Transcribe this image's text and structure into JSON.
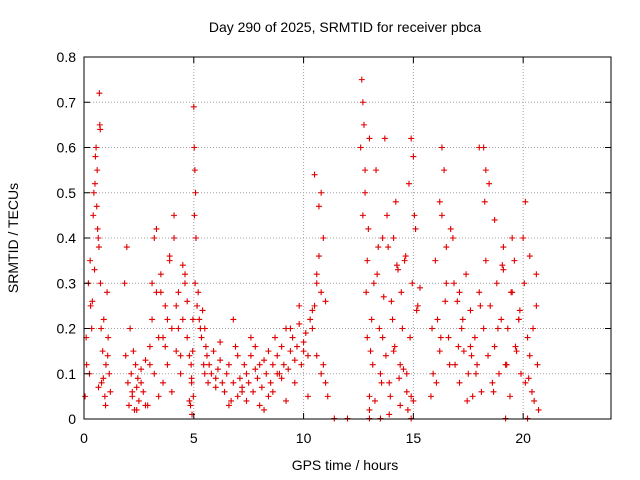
{
  "chart_data": {
    "type": "scatter",
    "title": "Day 290 of 2025, SRMTID for receiver pbca",
    "xlabel": "GPS time / hours",
    "ylabel": "SRMTID / TECUs",
    "xlim": [
      0,
      24
    ],
    "ylim": [
      0,
      0.8
    ],
    "xticks": [
      0,
      5,
      10,
      15,
      20
    ],
    "xtick_labels": [
      "0",
      "5",
      "10",
      "15",
      "20"
    ],
    "yticks": [
      0,
      0.1,
      0.2,
      0.3,
      0.4,
      0.5,
      0.6,
      0.7,
      0.8
    ],
    "ytick_labels": [
      "0",
      "0.1",
      "0.2",
      "0.3",
      "0.4",
      "0.5",
      "0.6",
      "0.7",
      "0.8"
    ],
    "grid": true,
    "marker": "plus",
    "colors": {
      "series": "#e00000",
      "grid": "#a0a0a0",
      "axis": "#000000"
    },
    "series": [
      {
        "name": "SRMTID",
        "x": [
          0.05,
          0.12,
          0.2,
          0.28,
          0.35,
          0.42,
          0.5,
          0.55,
          0.6,
          0.65,
          0.7,
          0.72,
          0.75,
          0.8,
          0.85,
          0.9,
          0.95,
          1.0,
          1.05,
          1.1,
          1.15,
          1.2,
          0.3,
          0.45,
          0.52,
          0.58,
          0.62,
          0.68,
          0.74,
          0.1,
          0.25,
          0.38,
          0.48,
          0.66,
          0.78,
          0.88,
          0.98,
          1.08,
          1.85,
          1.9,
          1.95,
          2.0,
          2.05,
          2.1,
          2.15,
          2.2,
          2.25,
          2.3,
          2.35,
          2.4,
          2.45,
          2.5,
          2.6,
          2.7,
          2.8,
          2.9,
          3.0,
          3.1,
          3.2,
          3.3,
          3.4,
          3.5,
          3.6,
          3.7,
          3.8,
          3.9,
          4.0,
          4.1,
          4.2,
          4.3,
          4.4,
          4.5,
          4.6,
          4.7,
          4.8,
          4.9,
          2.2,
          2.4,
          2.6,
          2.8,
          3.0,
          3.2,
          3.4,
          3.6,
          3.8,
          4.0,
          4.2,
          4.4,
          4.6,
          4.8,
          3.1,
          3.3,
          3.5,
          3.7,
          3.9,
          4.1,
          4.3,
          4.5,
          4.7,
          4.85,
          4.9,
          4.95,
          5.0,
          5.02,
          5.05,
          5.08,
          5.1,
          4.92,
          4.98,
          5.03,
          4.88,
          4.96,
          5.06,
          5.15,
          5.2,
          5.25,
          5.3,
          5.35,
          5.4,
          5.45,
          5.5,
          5.55,
          5.6,
          5.65,
          5.7,
          5.8,
          5.9,
          6.0,
          6.1,
          6.2,
          6.3,
          6.4,
          6.5,
          6.6,
          6.7,
          6.8,
          6.9,
          7.0,
          7.1,
          7.2,
          7.3,
          7.4,
          7.5,
          7.6,
          7.7,
          7.8,
          7.9,
          8.0,
          8.1,
          8.2,
          8.3,
          8.4,
          8.5,
          8.6,
          8.7,
          8.8,
          8.9,
          9.0,
          9.1,
          9.2,
          9.3,
          9.4,
          9.5,
          9.6,
          9.7,
          9.8,
          9.9,
          10.0,
          10.1,
          10.2,
          10.3,
          10.4,
          10.5,
          10.6,
          10.7,
          10.8,
          10.9,
          11.0,
          11.1,
          5.5,
          6.2,
          6.8,
          7.2,
          7.6,
          8.0,
          8.4,
          8.8,
          9.2,
          9.6,
          10.0,
          10.4,
          10.8,
          6.0,
          6.6,
          7.0,
          7.4,
          7.8,
          8.2,
          8.6,
          9.0,
          9.4,
          9.8,
          10.2,
          10.6,
          11.0,
          10.5,
          10.7,
          10.9,
          10.6,
          10.8,
          11.4,
          12.0,
          13.0,
          13.5,
          14.9,
          19.2,
          20.2,
          12.6,
          12.65,
          12.7,
          12.75,
          12.8,
          12.85,
          12.9,
          12.95,
          13.0,
          13.05,
          13.1,
          13.2,
          13.3,
          13.4,
          13.5,
          13.6,
          13.7,
          13.8,
          13.9,
          14.0,
          14.1,
          14.2,
          14.3,
          14.4,
          14.5,
          14.6,
          14.7,
          14.8,
          14.9,
          15.0,
          15.1,
          15.2,
          15.3,
          12.7,
          12.8,
          12.9,
          13.0,
          13.15,
          13.25,
          13.35,
          13.45,
          13.55,
          13.65,
          13.75,
          13.85,
          13.95,
          14.05,
          14.15,
          14.25,
          14.35,
          14.45,
          14.55,
          14.65,
          14.75,
          14.85,
          14.95,
          15.05,
          15.15,
          13.6,
          14.1,
          14.7,
          14.9,
          15.0,
          13.0,
          13.9,
          14.4,
          15.8,
          15.9,
          16.0,
          16.1,
          16.2,
          16.3,
          16.4,
          16.5,
          16.6,
          16.7,
          16.8,
          16.9,
          17.0,
          17.1,
          17.2,
          17.3,
          17.4,
          17.5,
          17.6,
          17.7,
          17.8,
          17.9,
          18.0,
          18.1,
          18.2,
          18.3,
          18.4,
          18.5,
          18.6,
          18.7,
          18.8,
          18.9,
          19.0,
          19.1,
          19.2,
          19.3,
          19.4,
          19.5,
          19.6,
          19.7,
          19.8,
          19.9,
          20.0,
          20.1,
          20.2,
          20.3,
          20.4,
          20.5,
          20.6,
          20.7,
          15.85,
          16.05,
          16.25,
          16.45,
          16.65,
          16.85,
          17.05,
          17.25,
          17.45,
          17.65,
          17.85,
          18.05,
          18.25,
          18.45,
          18.65,
          18.85,
          19.05,
          19.25,
          19.45,
          19.65,
          19.85,
          20.05,
          20.25,
          20.45,
          20.65,
          16.2,
          16.3,
          16.5,
          17.1,
          18.0,
          18.2,
          18.3,
          19.5,
          20.1,
          20.3,
          20.6,
          17.6,
          18.7,
          19.1,
          19.8
        ],
        "y": [
          0.05,
          0.12,
          0.3,
          0.35,
          0.2,
          0.45,
          0.52,
          0.6,
          0.55,
          0.4,
          0.72,
          0.65,
          0.3,
          0.08,
          0.15,
          0.22,
          0.05,
          0.12,
          0.28,
          0.18,
          0.1,
          0.06,
          0.25,
          0.5,
          0.58,
          0.47,
          0.42,
          0.38,
          0.64,
          0.18,
          0.1,
          0.26,
          0.33,
          0.07,
          0.2,
          0.09,
          0.03,
          0.14,
          0.3,
          0.14,
          0.38,
          0.08,
          0.03,
          0.2,
          0.1,
          0.05,
          0.15,
          0.02,
          0.12,
          0.07,
          0.09,
          0.04,
          0.11,
          0.06,
          0.13,
          0.03,
          0.16,
          0.22,
          0.4,
          0.28,
          0.18,
          0.32,
          0.08,
          0.25,
          0.12,
          0.35,
          0.2,
          0.45,
          0.15,
          0.28,
          0.1,
          0.22,
          0.3,
          0.18,
          0.14,
          0.09,
          0.06,
          0.02,
          0.08,
          0.03,
          0.12,
          0.1,
          0.05,
          0.18,
          0.22,
          0.06,
          0.25,
          0.14,
          0.32,
          0.04,
          0.3,
          0.42,
          0.28,
          0.16,
          0.36,
          0.4,
          0.2,
          0.34,
          0.26,
          0.03,
          0.08,
          0.15,
          0.69,
          0.6,
          0.55,
          0.5,
          0.4,
          0.01,
          0.05,
          0.45,
          0.12,
          0.22,
          0.3,
          0.25,
          0.28,
          0.22,
          0.2,
          0.18,
          0.24,
          0.12,
          0.1,
          0.16,
          0.14,
          0.08,
          0.12,
          0.1,
          0.15,
          0.09,
          0.11,
          0.13,
          0.08,
          0.06,
          0.1,
          0.12,
          0.04,
          0.08,
          0.16,
          0.05,
          0.09,
          0.07,
          0.12,
          0.1,
          0.08,
          0.14,
          0.06,
          0.11,
          0.09,
          0.12,
          0.07,
          0.13,
          0.1,
          0.15,
          0.08,
          0.12,
          0.18,
          0.14,
          0.1,
          0.16,
          0.12,
          0.2,
          0.11,
          0.15,
          0.18,
          0.13,
          0.16,
          0.21,
          0.12,
          0.17,
          0.19,
          0.14,
          0.22,
          0.2,
          0.25,
          0.3,
          0.36,
          0.28,
          0.12,
          0.08,
          0.05,
          0.2,
          0.17,
          0.22,
          0.06,
          0.18,
          0.03,
          0.05,
          0.1,
          0.04,
          0.08,
          0.15,
          0.24,
          0.5,
          0.07,
          0.03,
          0.14,
          0.04,
          0.16,
          0.02,
          0.06,
          0.09,
          0.2,
          0.25,
          0.05,
          0.32,
          0.26,
          0.54,
          0.47,
          0.4,
          0.14,
          0.1,
          0.0,
          0.0,
          0.0,
          0.0,
          0.0,
          0.0,
          0.0,
          0.6,
          0.75,
          0.7,
          0.65,
          0.5,
          0.28,
          0.35,
          0.42,
          0.05,
          0.15,
          0.22,
          0.3,
          0.55,
          0.38,
          0.1,
          0.18,
          0.62,
          0.45,
          0.08,
          0.26,
          0.4,
          0.48,
          0.33,
          0.12,
          0.2,
          0.35,
          0.06,
          0.52,
          0.62,
          0.58,
          0.42,
          0.25,
          0.29,
          0.45,
          0.55,
          0.18,
          0.62,
          0.12,
          0.04,
          0.32,
          0.2,
          0.08,
          0.27,
          0.14,
          0.38,
          0.05,
          0.22,
          0.16,
          0.34,
          0.09,
          0.28,
          0.11,
          0.36,
          0.02,
          0.18,
          0.3,
          0.45,
          0.24,
          0.4,
          0.15,
          0.1,
          0.05,
          0.04,
          0.02,
          0.01,
          0.03,
          0.05,
          0.1,
          0.35,
          0.22,
          0.15,
          0.6,
          0.55,
          0.3,
          0.18,
          0.42,
          0.4,
          0.12,
          0.26,
          0.08,
          0.2,
          0.15,
          0.32,
          0.1,
          0.24,
          0.05,
          0.18,
          0.12,
          0.28,
          0.06,
          0.2,
          0.35,
          0.14,
          0.25,
          0.08,
          0.16,
          0.3,
          0.1,
          0.22,
          0.38,
          0.12,
          0.2,
          0.05,
          0.28,
          0.35,
          0.15,
          0.22,
          0.1,
          0.4,
          0.08,
          0.18,
          0.14,
          0.06,
          0.04,
          0.32,
          0.02,
          0.2,
          0.08,
          0.18,
          0.26,
          0.12,
          0.3,
          0.16,
          0.22,
          0.04,
          0.14,
          0.1,
          0.25,
          0.48,
          0.52,
          0.06,
          0.2,
          0.34,
          0.12,
          0.28,
          0.16,
          0.24,
          0.3,
          0.09,
          0.2,
          0.12,
          0.48,
          0.45,
          0.38,
          0.28,
          0.6,
          0.6,
          0.55,
          0.4,
          0.48,
          0.36,
          0.25,
          0.16,
          0.44,
          0.33,
          0.22
        ]
      }
    ]
  }
}
